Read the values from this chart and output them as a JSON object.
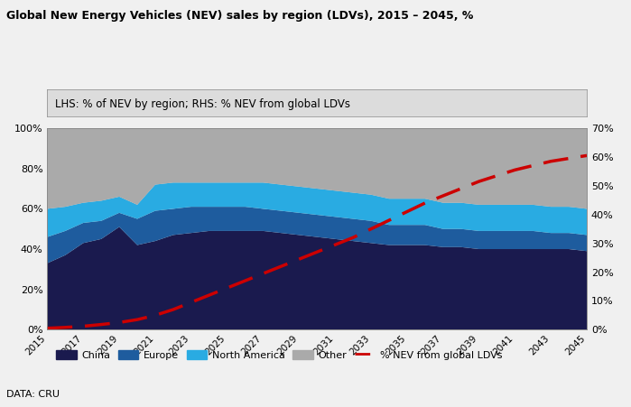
{
  "title": "Global New Energy Vehicles (NEV) sales by region (LDVs), 2015 – 2045, %",
  "subtitle": "LHS: % of NEV by region; RHS: % NEV from global LDVs",
  "data_source": "DATA: CRU",
  "years": [
    2015,
    2016,
    2017,
    2018,
    2019,
    2020,
    2021,
    2022,
    2023,
    2024,
    2025,
    2026,
    2027,
    2028,
    2029,
    2030,
    2031,
    2032,
    2033,
    2034,
    2035,
    2036,
    2037,
    2038,
    2039,
    2040,
    2041,
    2042,
    2043,
    2044,
    2045
  ],
  "china": [
    33,
    37,
    43,
    45,
    51,
    42,
    44,
    47,
    48,
    49,
    49,
    49,
    49,
    48,
    47,
    46,
    45,
    44,
    43,
    42,
    42,
    42,
    41,
    41,
    40,
    40,
    40,
    40,
    40,
    40,
    39
  ],
  "europe": [
    13,
    12,
    10,
    9,
    7,
    13,
    15,
    13,
    13,
    12,
    12,
    12,
    11,
    11,
    11,
    11,
    11,
    11,
    11,
    10,
    10,
    10,
    9,
    9,
    9,
    9,
    9,
    9,
    8,
    8,
    8
  ],
  "north_america": [
    14,
    12,
    10,
    10,
    8,
    7,
    13,
    13,
    12,
    12,
    12,
    12,
    13,
    13,
    13,
    13,
    13,
    13,
    13,
    13,
    13,
    13,
    13,
    13,
    13,
    13,
    13,
    13,
    13,
    13,
    13
  ],
  "other": [
    40,
    39,
    37,
    36,
    34,
    38,
    28,
    27,
    27,
    27,
    27,
    27,
    27,
    28,
    29,
    30,
    31,
    32,
    33,
    35,
    35,
    35,
    37,
    37,
    38,
    38,
    38,
    38,
    39,
    39,
    40
  ],
  "nev_global": [
    0.5,
    0.8,
    1.2,
    1.8,
    2.5,
    3.5,
    5.0,
    7.0,
    9.5,
    12.0,
    14.5,
    17.0,
    19.5,
    22.0,
    24.5,
    27.0,
    29.5,
    32.0,
    35.0,
    38.0,
    41.0,
    44.0,
    46.5,
    49.0,
    51.5,
    53.5,
    55.5,
    57.0,
    58.5,
    59.5,
    60.5
  ],
  "color_china": "#1a1a4e",
  "color_europe": "#1e5c9e",
  "color_north_america": "#29abe2",
  "color_other": "#aaaaaa",
  "color_nev_line": "#cc0000",
  "ylim_left": [
    0,
    100
  ],
  "ylim_right": [
    0,
    70
  ],
  "yticks_left": [
    0,
    20,
    40,
    60,
    80,
    100
  ],
  "yticks_right": [
    0,
    10,
    20,
    30,
    40,
    50,
    60,
    70
  ],
  "bg_color": "#dcdcdc",
  "fig_bg_color": "#f0f0f0"
}
